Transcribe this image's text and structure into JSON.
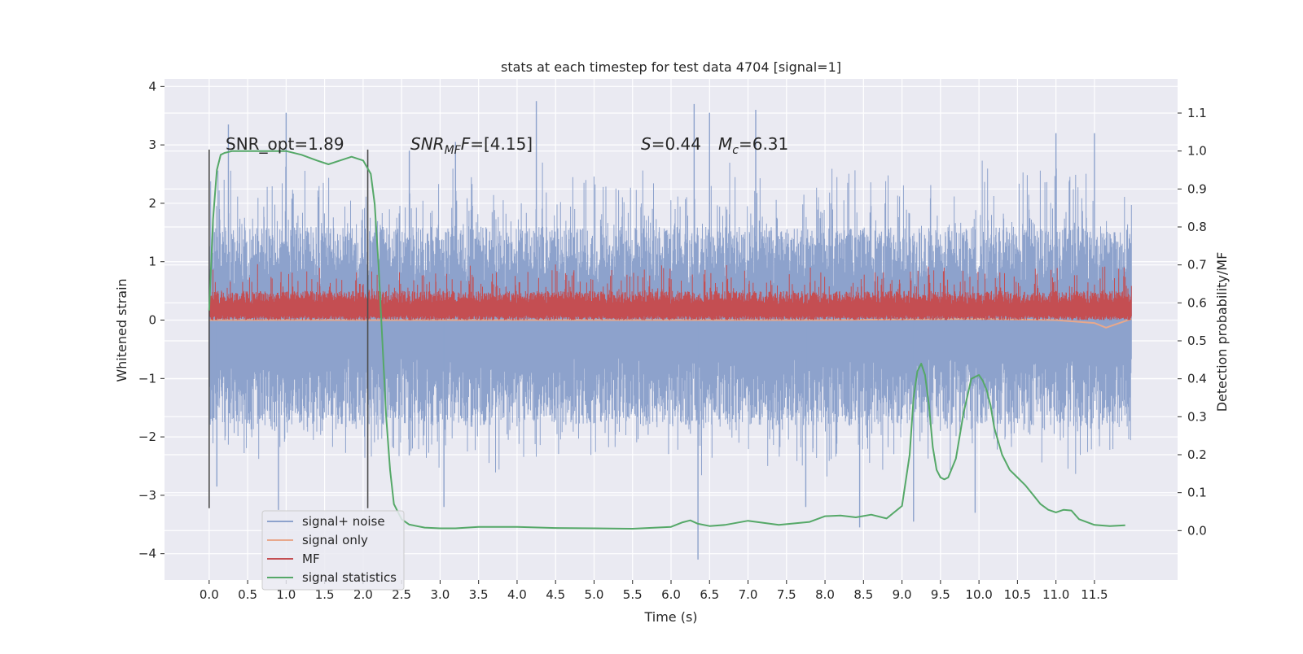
{
  "chart_data": {
    "type": "line",
    "title": "stats at each timestep for test data 4704 [signal=1]",
    "xlabel": "Time (s)",
    "ylabel_left": "Whitened strain",
    "ylabel_right": "Detection probability/MF",
    "xlim": [
      -0.58,
      12.58
    ],
    "ylim_left": [
      -4.45,
      4.13
    ],
    "ylim_right": [
      -0.13,
      1.19
    ],
    "x_ticks": [
      0.0,
      0.5,
      1.0,
      1.5,
      2.0,
      2.5,
      3.0,
      3.5,
      4.0,
      4.5,
      5.0,
      5.5,
      6.0,
      6.5,
      7.0,
      7.5,
      8.0,
      8.5,
      9.0,
      9.5,
      10.0,
      10.5,
      11.0,
      11.5
    ],
    "y_ticks_left": [
      -4,
      -3,
      -2,
      -1,
      0,
      1,
      2,
      3,
      4
    ],
    "y_ticks_right": [
      0.0,
      0.1,
      0.2,
      0.3,
      0.4,
      0.5,
      0.6,
      0.7,
      0.8,
      0.9,
      1.0,
      1.1
    ],
    "grid": true,
    "legend_position": "lower-left",
    "x_range_data": [
      0.0,
      11.98
    ],
    "vlines": [
      0.0,
      2.06
    ],
    "vline_ylim": [
      -3.22,
      2.92
    ],
    "annotations": {
      "snr_opt": "SNR_opt=1.89",
      "snr_mf_main": "SNR",
      "snr_mf_sub": "MF",
      "snr_mf_rest": "=[4.15]",
      "s_main": "S",
      "s_rest": "=0.44",
      "mc_main": "M",
      "mc_sub": "c",
      "mc_rest": "=6.31"
    },
    "series": [
      {
        "name": "signal+ noise",
        "axis": "left",
        "color": "#8da2cc",
        "envelope": {
          "typical_high": 1.6,
          "typical_low": -1.8,
          "max": 3.75,
          "min": -4.1,
          "spikes": [
            {
              "x": 0.25,
              "y": 3.35
            },
            {
              "x": 1.0,
              "y": 3.55
            },
            {
              "x": 2.6,
              "y": 2.9
            },
            {
              "x": 3.2,
              "y": 3.05
            },
            {
              "x": 4.25,
              "y": 3.75
            },
            {
              "x": 6.3,
              "y": 3.7
            },
            {
              "x": 6.5,
              "y": 3.55
            },
            {
              "x": 7.1,
              "y": 3.6
            },
            {
              "x": 11.0,
              "y": 3.2
            },
            {
              "x": 11.5,
              "y": 3.2
            },
            {
              "x": 0.9,
              "y": -3.25
            },
            {
              "x": 6.35,
              "y": -4.1
            },
            {
              "x": 8.45,
              "y": -3.55
            },
            {
              "x": 9.15,
              "y": -3.45
            },
            {
              "x": 3.05,
              "y": -3.2
            },
            {
              "x": 0.1,
              "y": -2.85
            },
            {
              "x": 7.75,
              "y": -3.2
            },
            {
              "x": 9.95,
              "y": -3.3
            }
          ]
        }
      },
      {
        "name": "signal only",
        "axis": "left",
        "color": "#e8a88c",
        "x": [
          0.0,
          8.0,
          9.0,
          10.0,
          11.0,
          11.5,
          11.65,
          11.98
        ],
        "y": [
          0.0,
          0.0,
          0.01,
          0.02,
          0.0,
          -0.05,
          -0.13,
          0.02
        ]
      },
      {
        "name": "MF",
        "axis": "left",
        "color": "#c44e52",
        "envelope": {
          "typical_high": 0.5,
          "typical_low": 0.0,
          "max": 0.98,
          "min": -0.05
        }
      },
      {
        "name": "signal statistics",
        "axis": "right",
        "color": "#55a868",
        "x": [
          0.0,
          0.05,
          0.1,
          0.15,
          0.2,
          0.3,
          0.5,
          0.8,
          1.0,
          1.2,
          1.4,
          1.55,
          1.7,
          1.85,
          2.0,
          2.1,
          2.15,
          2.2,
          2.25,
          2.3,
          2.35,
          2.4,
          2.5,
          2.6,
          2.8,
          3.0,
          3.2,
          3.5,
          4.0,
          4.5,
          5.0,
          5.5,
          6.0,
          6.15,
          6.25,
          6.35,
          6.5,
          6.7,
          7.0,
          7.4,
          7.8,
          8.0,
          8.2,
          8.4,
          8.6,
          8.8,
          9.0,
          9.1,
          9.15,
          9.2,
          9.25,
          9.3,
          9.35,
          9.4,
          9.45,
          9.5,
          9.55,
          9.6,
          9.7,
          9.8,
          9.9,
          9.95,
          10.0,
          10.05,
          10.1,
          10.15,
          10.2,
          10.3,
          10.4,
          10.5,
          10.6,
          10.7,
          10.8,
          10.9,
          11.0,
          11.1,
          11.2,
          11.3,
          11.5,
          11.7,
          11.9
        ],
        "y": [
          0.58,
          0.82,
          0.95,
          0.99,
          0.995,
          1.0,
          1.0,
          1.0,
          1.0,
          0.99,
          0.975,
          0.965,
          0.975,
          0.985,
          0.975,
          0.94,
          0.86,
          0.7,
          0.5,
          0.3,
          0.16,
          0.07,
          0.03,
          0.016,
          0.008,
          0.006,
          0.006,
          0.01,
          0.01,
          0.007,
          0.006,
          0.005,
          0.01,
          0.022,
          0.027,
          0.018,
          0.012,
          0.015,
          0.026,
          0.015,
          0.023,
          0.038,
          0.04,
          0.035,
          0.042,
          0.032,
          0.065,
          0.2,
          0.35,
          0.42,
          0.44,
          0.41,
          0.33,
          0.22,
          0.16,
          0.14,
          0.135,
          0.14,
          0.19,
          0.31,
          0.4,
          0.405,
          0.41,
          0.395,
          0.37,
          0.33,
          0.27,
          0.2,
          0.16,
          0.14,
          0.12,
          0.095,
          0.07,
          0.055,
          0.048,
          0.055,
          0.053,
          0.03,
          0.015,
          0.012,
          0.014
        ]
      }
    ]
  }
}
